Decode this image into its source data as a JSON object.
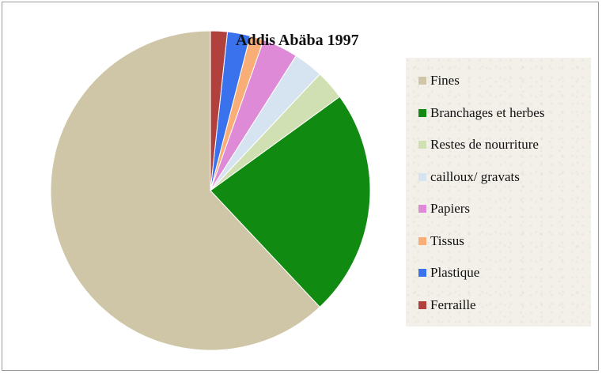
{
  "chart_data": {
    "type": "pie",
    "title": "Addis Abäba 1997",
    "legend_position": "right",
    "start_angle": "12 o'clock",
    "direction": "counter-clockwise",
    "slices": [
      {
        "label": "Fines",
        "value": 62.0,
        "color": "#cec6a6"
      },
      {
        "label": "Branchages et herbes",
        "value": 23.0,
        "color": "#118a11"
      },
      {
        "label": "Restes de nourriture",
        "value": 3.0,
        "color": "#d1e0b2"
      },
      {
        "label": "cailloux/ gravats",
        "value": 3.0,
        "color": "#d6e4f2"
      },
      {
        "label": "Papiers",
        "value": 3.6,
        "color": "#de8ad6"
      },
      {
        "label": "Tissus",
        "value": 1.4,
        "color": "#f9ae77"
      },
      {
        "label": "Plastique",
        "value": 2.3,
        "color": "#3a72ee"
      },
      {
        "label": "Ferraille",
        "value": 1.7,
        "color": "#b0413d"
      }
    ]
  }
}
